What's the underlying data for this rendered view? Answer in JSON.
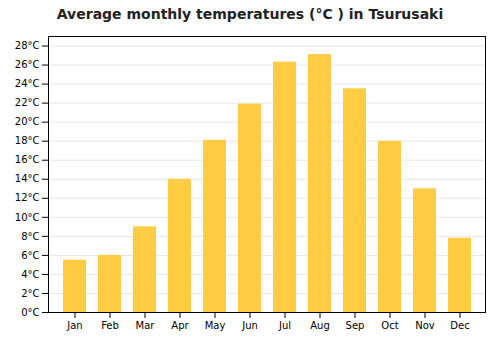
{
  "chart_data": {
    "type": "bar",
    "title": "Average monthly temperatures (°C ) in Tsurusaki",
    "categories": [
      "Jan",
      "Feb",
      "Mar",
      "Apr",
      "May",
      "Jun",
      "Jul",
      "Aug",
      "Sep",
      "Oct",
      "Nov",
      "Dec"
    ],
    "values": [
      5.5,
      6.0,
      9.0,
      14.0,
      18.1,
      21.9,
      26.3,
      27.1,
      23.5,
      18.0,
      13.0,
      7.8
    ],
    "color": "#FFCC44",
    "ylim": [
      0,
      29
    ],
    "yticks": [
      {
        "value": 0,
        "label": "0°C"
      },
      {
        "value": 2,
        "label": "2°C"
      },
      {
        "value": 4,
        "label": "4°C"
      },
      {
        "value": 6,
        "label": "6°C"
      },
      {
        "value": 8,
        "label": "8°C"
      },
      {
        "value": 10,
        "label": "10°C"
      },
      {
        "value": 12,
        "label": "12°C"
      },
      {
        "value": 14,
        "label": "14°C"
      },
      {
        "value": 16,
        "label": "16°C"
      },
      {
        "value": 18,
        "label": "18°C"
      },
      {
        "value": 20,
        "label": "20°C"
      },
      {
        "value": 22,
        "label": "22°C"
      },
      {
        "value": 24,
        "label": "24°C"
      },
      {
        "value": 26,
        "label": "26°C"
      },
      {
        "value": 28,
        "label": "28°C"
      }
    ],
    "grid": true
  }
}
